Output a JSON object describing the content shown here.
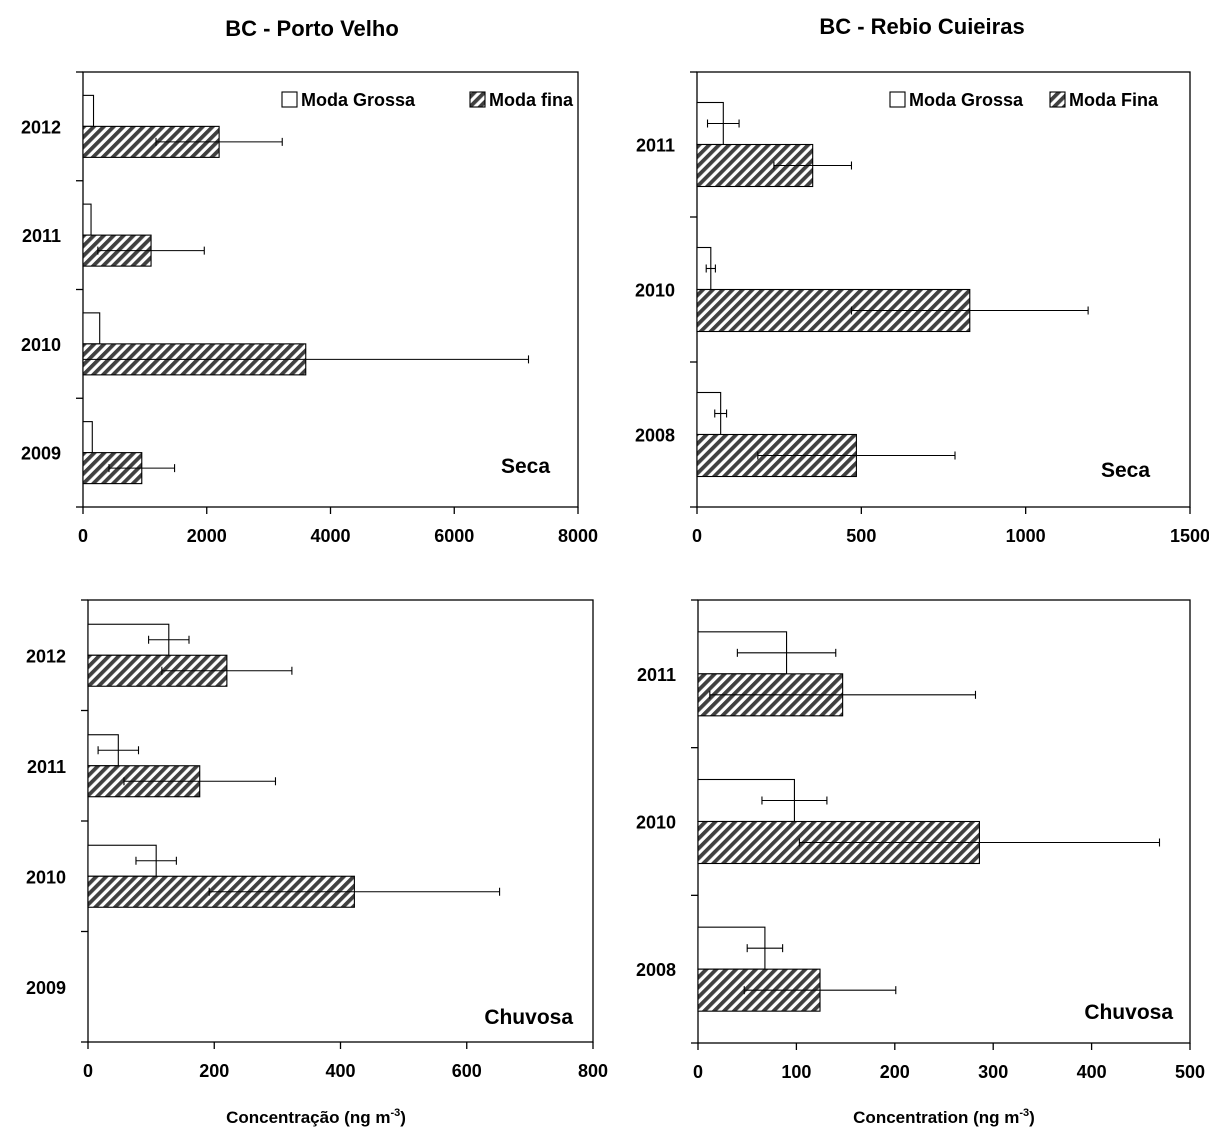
{
  "titles": {
    "left": "BC - Porto Velho",
    "right": "BC - Rebio Cuieiras"
  },
  "xlabels": {
    "left": {
      "main": "Concentração (ng m",
      "sup": "-3",
      "end": ")"
    },
    "right": {
      "main": "Concentration (ng m",
      "sup": "-3",
      "end": ")"
    }
  },
  "colors": {
    "coarse_fill": "#ffffff",
    "fine_stripe_dark": "#404040",
    "fine_stripe_light": "#ffffff",
    "axis": "#000000"
  },
  "chart_data": [
    {
      "type": "bar",
      "orientation": "horizontal",
      "panel": "top-left",
      "annotation": "Seca",
      "legend": {
        "position": "top-right",
        "entries": [
          "Moda Grossa",
          "Moda fina"
        ]
      },
      "categories": [
        "2009",
        "2010",
        "2011",
        "2012"
      ],
      "xlim": [
        0,
        8000
      ],
      "xticks": [
        "0",
        "2000",
        "4000",
        "6000",
        "8000"
      ],
      "series": [
        {
          "name": "Moda Grossa",
          "style": "open",
          "values": [
            150,
            270,
            130,
            170
          ],
          "errors": [
            0,
            0,
            0,
            0
          ]
        },
        {
          "name": "Moda fina",
          "style": "hatched",
          "values": [
            950,
            3600,
            1100,
            2200
          ],
          "errors": [
            530,
            3600,
            860,
            1020
          ]
        }
      ]
    },
    {
      "type": "bar",
      "orientation": "horizontal",
      "panel": "top-right",
      "annotation": "Seca",
      "legend": {
        "position": "top-right",
        "entries": [
          "Moda Grossa",
          "Moda Fina"
        ]
      },
      "categories": [
        "2008",
        "2010",
        "2011"
      ],
      "xlim": [
        0,
        1500
      ],
      "xticks": [
        "0",
        "500",
        "1000",
        "1500"
      ],
      "series": [
        {
          "name": "Moda Grossa",
          "style": "open",
          "values": [
            72,
            42,
            80
          ],
          "errors": [
            18,
            14,
            48
          ]
        },
        {
          "name": "Moda Fina",
          "style": "hatched",
          "values": [
            485,
            830,
            352
          ],
          "errors": [
            300,
            360,
            118
          ]
        }
      ]
    },
    {
      "type": "bar",
      "orientation": "horizontal",
      "panel": "bottom-left",
      "annotation": "Chuvosa",
      "categories": [
        "2009",
        "2010",
        "2011",
        "2012"
      ],
      "xlim": [
        0,
        800
      ],
      "xticks": [
        "0",
        "200",
        "400",
        "600",
        "800"
      ],
      "series": [
        {
          "name": "Moda Grossa",
          "style": "open",
          "values": [
            null,
            108,
            48,
            128
          ],
          "errors": [
            null,
            32,
            32,
            32
          ]
        },
        {
          "name": "Moda fina",
          "style": "hatched",
          "values": [
            null,
            422,
            177,
            220
          ],
          "errors": [
            null,
            230,
            120,
            103
          ]
        }
      ]
    },
    {
      "type": "bar",
      "orientation": "horizontal",
      "panel": "bottom-right",
      "annotation": "Chuvosa",
      "categories": [
        "2008",
        "2010",
        "2011"
      ],
      "xlim": [
        0,
        500
      ],
      "xticks": [
        "0",
        "100",
        "200",
        "300",
        "400",
        "500"
      ],
      "series": [
        {
          "name": "Moda Grossa",
          "style": "open",
          "values": [
            68,
            98,
            90
          ],
          "errors": [
            18,
            33,
            50
          ]
        },
        {
          "name": "Moda Fina",
          "style": "hatched",
          "values": [
            124,
            286,
            147
          ],
          "errors": [
            77,
            183,
            135
          ]
        }
      ]
    }
  ]
}
